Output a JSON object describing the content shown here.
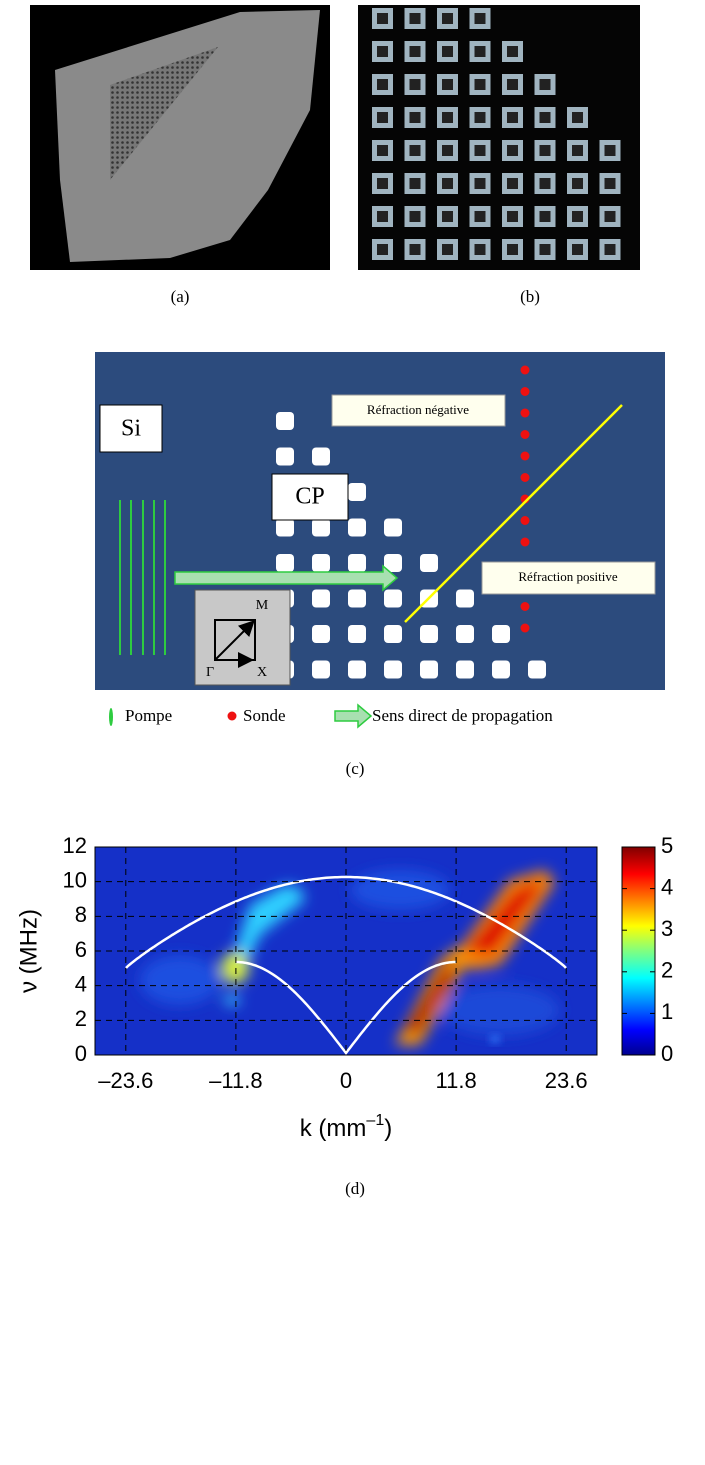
{
  "panels": {
    "a": {
      "caption": "(a)"
    },
    "b": {
      "caption": "(b)"
    },
    "c": {
      "caption": "(c)",
      "labels": {
        "si": "Si",
        "cp": "CP",
        "negative": "Réfraction négative",
        "positive": "Réfraction positive",
        "m": "M",
        "gamma": "Γ",
        "x": "X"
      },
      "legend": [
        "Pompe",
        "Sonde",
        "Sens direct de propagation"
      ]
    }
  },
  "chart_data": {
    "type": "heatmap",
    "caption": "(d)",
    "xlabel": {
      "text": "k (mm",
      "sup": "–1",
      "close": ")"
    },
    "ylabel": "ν (MHz)",
    "xlim": [
      -26.9,
      26.9
    ],
    "ylim": [
      0,
      12
    ],
    "xticks": [
      {
        "value": -23.6,
        "label": "–23.6"
      },
      {
        "value": -11.8,
        "label": "–11.8"
      },
      0,
      11.8,
      23.6
    ],
    "yticks": [
      0,
      2,
      4,
      6,
      8,
      10,
      12
    ],
    "grid": true,
    "colorbar": {
      "lim": [
        0,
        5
      ],
      "ticks": [
        0,
        1,
        2,
        3,
        4,
        5
      ]
    }
  }
}
